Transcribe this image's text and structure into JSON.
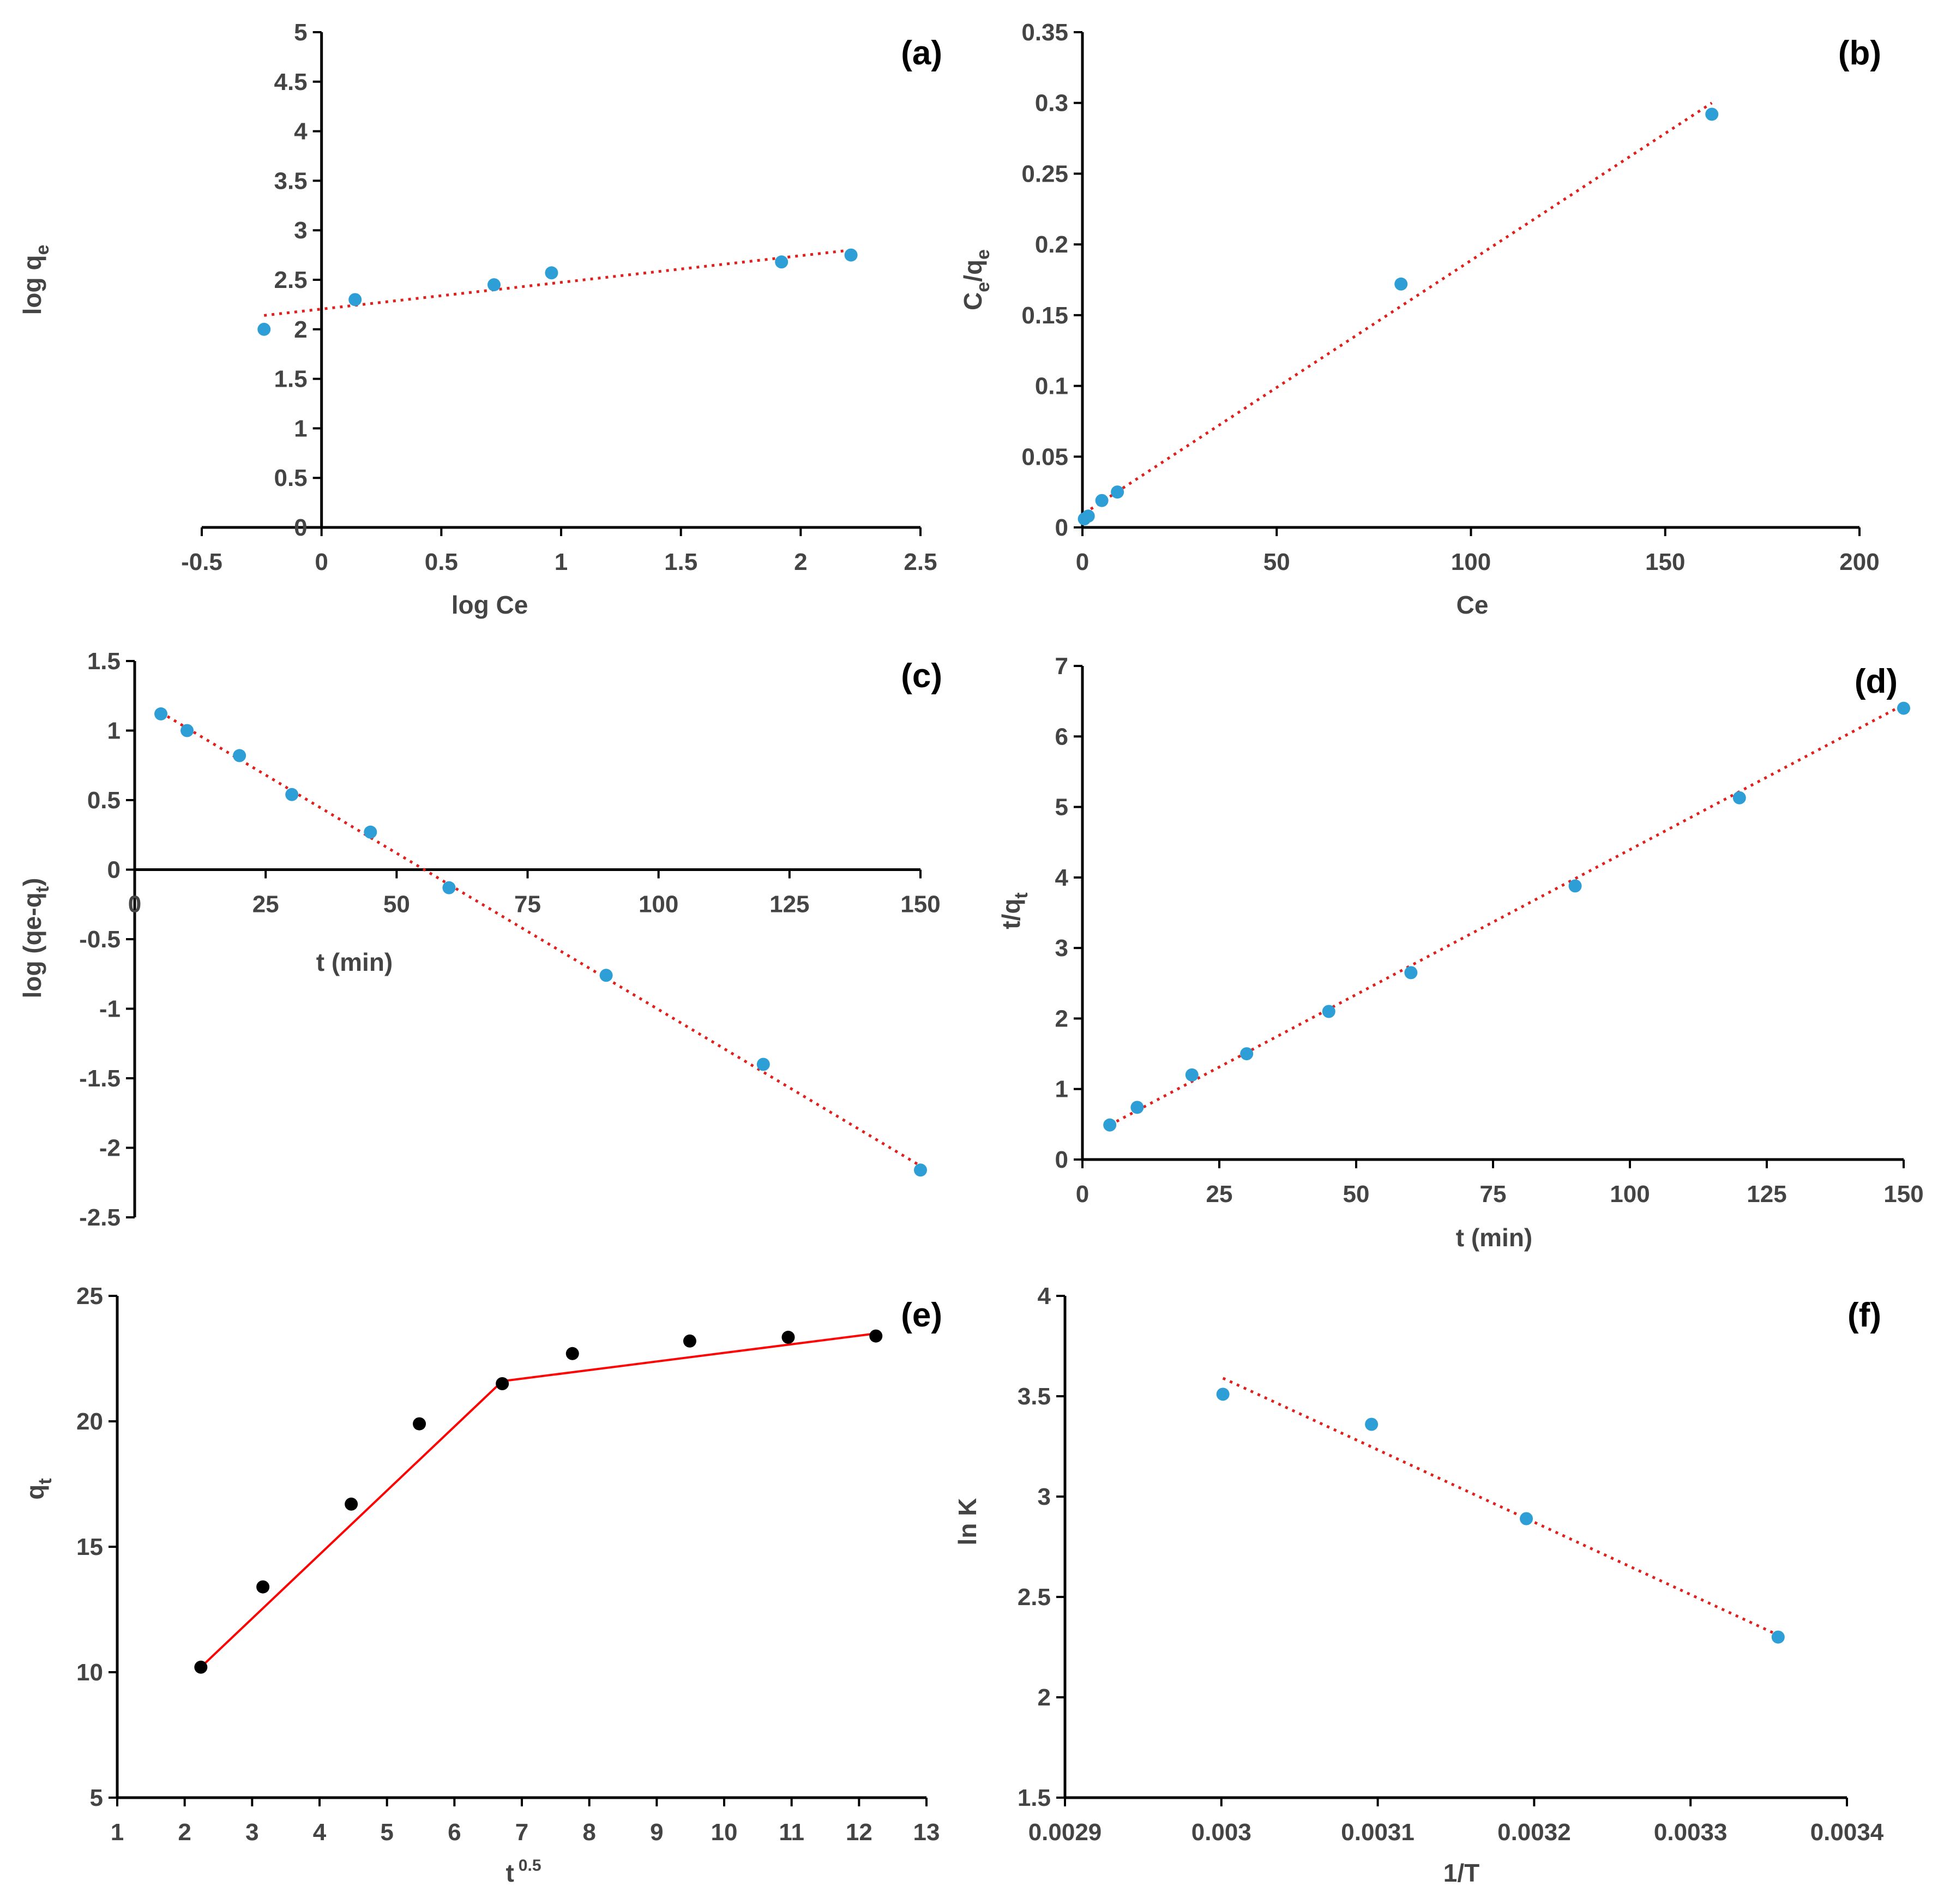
{
  "chart_data": [
    {
      "type": "scatter",
      "panel_label": "(a)",
      "xlabel": "log Ce",
      "ylabel": "log q",
      "ylabel_sub": "e",
      "xlim": [
        -0.5,
        2.5
      ],
      "ylim": [
        0,
        5
      ],
      "xticks": [
        -0.5,
        0,
        0.5,
        1,
        1.5,
        2,
        2.5
      ],
      "xtick_labels": [
        "-0.5",
        "0",
        "0.5",
        "1",
        "1.5",
        "2",
        "2.5"
      ],
      "yticks": [
        0,
        0.5,
        1,
        1.5,
        2,
        2.5,
        3,
        3.5,
        4,
        4.5,
        5
      ],
      "ytick_labels": [
        "0",
        "0.5",
        "1",
        "1.5",
        "2",
        "2.5",
        "3",
        "3.5",
        "4",
        "4.5",
        "5"
      ],
      "points": [
        [
          -0.24,
          2.0
        ],
        [
          0.14,
          2.3
        ],
        [
          0.72,
          2.45
        ],
        [
          0.96,
          2.57
        ],
        [
          1.92,
          2.68
        ],
        [
          2.21,
          2.75
        ]
      ],
      "trendline": [
        [
          -0.24,
          2.14
        ],
        [
          2.21,
          2.8
        ]
      ]
    },
    {
      "type": "scatter",
      "panel_label": "(b)",
      "xlabel": "Ce",
      "ylabel": "C/q",
      "ylabel_sub": "e",
      "xlim": [
        0,
        200
      ],
      "ylim": [
        0,
        0.35
      ],
      "xticks": [
        0,
        50,
        100,
        150,
        200
      ],
      "xtick_labels": [
        "0",
        "50",
        "100",
        "150",
        "200"
      ],
      "yticks": [
        0,
        0.05,
        0.1,
        0.15,
        0.2,
        0.25,
        0.3,
        0.35
      ],
      "ytick_labels": [
        "0",
        "0.05",
        "0.1",
        "0.15",
        "0.2",
        "0.25",
        "0.3",
        "0.35"
      ],
      "points": [
        [
          0.5,
          0.006
        ],
        [
          1.5,
          0.008
        ],
        [
          5,
          0.019
        ],
        [
          9,
          0.025
        ],
        [
          82,
          0.172
        ],
        [
          162,
          0.292
        ]
      ],
      "trendline": [
        [
          0.5,
          0.01
        ],
        [
          162,
          0.3
        ]
      ]
    },
    {
      "type": "scatter",
      "panel_label": "(c)",
      "xlabel": "t (min)",
      "ylabel": "log (qe-q",
      "ylabel_sub": "t",
      "ylabel_end": ")",
      "xlim": [
        0,
        150
      ],
      "ylim": [
        -2.5,
        1.5
      ],
      "xticks": [
        0,
        25,
        50,
        75,
        100,
        125,
        150
      ],
      "xtick_labels": [
        "0",
        "25",
        "50",
        "75",
        "100",
        "125",
        "150"
      ],
      "yticks": [
        -2.5,
        -2,
        -1.5,
        -1,
        -0.5,
        0,
        0.5,
        1,
        1.5
      ],
      "ytick_labels": [
        "-2.5",
        "-2",
        "-1.5",
        "-1",
        "-0.5",
        "0",
        "0.5",
        "1",
        "1.5"
      ],
      "points": [
        [
          5,
          1.12
        ],
        [
          10,
          1.0
        ],
        [
          20,
          0.82
        ],
        [
          30,
          0.54
        ],
        [
          45,
          0.27
        ],
        [
          60,
          -0.13
        ],
        [
          90,
          -0.76
        ],
        [
          120,
          -1.4
        ],
        [
          150,
          -2.16
        ]
      ],
      "trendline": [
        [
          5,
          1.13
        ],
        [
          150,
          -2.13
        ]
      ]
    },
    {
      "type": "scatter",
      "panel_label": "(d)",
      "xlabel": "t (min)",
      "ylabel": "t/q",
      "ylabel_sub": "t",
      "xlim": [
        0,
        150
      ],
      "ylim": [
        0,
        7
      ],
      "xticks": [
        0,
        25,
        50,
        75,
        100,
        125,
        150
      ],
      "xtick_labels": [
        "0",
        "25",
        "50",
        "75",
        "100",
        "125",
        "150"
      ],
      "yticks": [
        0,
        1,
        2,
        3,
        4,
        5,
        6,
        7
      ],
      "ytick_labels": [
        "0",
        "1",
        "2",
        "3",
        "4",
        "5",
        "6",
        "7"
      ],
      "points": [
        [
          5,
          0.49
        ],
        [
          10,
          0.74
        ],
        [
          20,
          1.2
        ],
        [
          30,
          1.5
        ],
        [
          45,
          2.1
        ],
        [
          60,
          2.65
        ],
        [
          90,
          3.88
        ],
        [
          120,
          5.13
        ],
        [
          150,
          6.4
        ]
      ],
      "trendline": [
        [
          5,
          0.49
        ],
        [
          150,
          6.45
        ]
      ]
    },
    {
      "type": "scatter",
      "panel_label": "(e)",
      "xlabel": "t",
      "xlabel_sup": "0.5",
      "ylabel": "q",
      "ylabel_sub": "t",
      "xlim": [
        1,
        13
      ],
      "ylim": [
        5,
        25
      ],
      "xticks": [
        1,
        2,
        3,
        4,
        5,
        6,
        7,
        8,
        9,
        10,
        11,
        12,
        13
      ],
      "xtick_labels": [
        "1",
        "2",
        "3",
        "4",
        "5",
        "6",
        "7",
        "8",
        "9",
        "10",
        "11",
        "12",
        "13"
      ],
      "yticks": [
        5,
        10,
        15,
        20,
        25
      ],
      "ytick_labels": [
        "5",
        "10",
        "15",
        "20",
        "25"
      ],
      "points": [
        [
          2.24,
          10.2
        ],
        [
          3.16,
          13.4
        ],
        [
          4.47,
          16.7
        ],
        [
          5.48,
          19.9
        ],
        [
          6.71,
          21.5
        ],
        [
          7.75,
          22.7
        ],
        [
          9.49,
          23.2
        ],
        [
          10.95,
          23.35
        ],
        [
          12.25,
          23.4
        ]
      ],
      "segments": [
        [
          [
            2.24,
            10.2
          ],
          [
            6.71,
            21.6
          ]
        ],
        [
          [
            6.71,
            21.6
          ],
          [
            12.25,
            23.5
          ]
        ]
      ]
    },
    {
      "type": "scatter",
      "panel_label": "(f)",
      "xlabel": "1/T",
      "ylabel": "ln K",
      "xlim": [
        0.0029,
        0.0034
      ],
      "ylim": [
        1.5,
        4
      ],
      "xticks": [
        0.0029,
        0.003,
        0.0031,
        0.0032,
        0.0033,
        0.0034
      ],
      "xtick_labels": [
        "0.0029",
        "0.003",
        "0.0031",
        "0.0032",
        "0.0033",
        "0.0034"
      ],
      "yticks": [
        1.5,
        2,
        2.5,
        3,
        3.5,
        4
      ],
      "ytick_labels": [
        "1.5",
        "2",
        "2.5",
        "3",
        "3.5",
        "4"
      ],
      "points": [
        [
          0.003001,
          3.51
        ],
        [
          0.003096,
          3.36
        ],
        [
          0.003195,
          2.89
        ],
        [
          0.003356,
          2.3
        ]
      ],
      "trendline": [
        [
          0.003001,
          3.59
        ],
        [
          0.003356,
          2.31
        ]
      ]
    }
  ]
}
